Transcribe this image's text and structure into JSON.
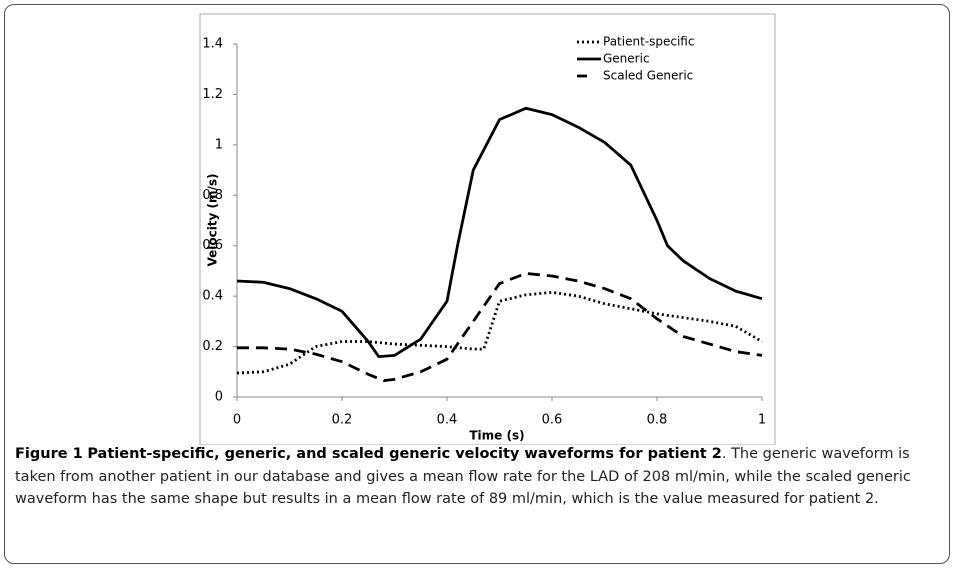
{
  "chart_data": {
    "type": "line",
    "xlabel": "Time (s)",
    "ylabel": "Velocity (m/s)",
    "xlim": [
      0,
      1
    ],
    "xticks": [
      0,
      0.2,
      0.4,
      0.6,
      0.8,
      1
    ],
    "ylim": [
      0,
      1.4
    ],
    "yticks": [
      0,
      0.2,
      0.4,
      0.6,
      0.8,
      1,
      1.2,
      1.4
    ],
    "legend": "upper-right",
    "series": [
      {
        "name": "Patient-specific",
        "color": "#000000",
        "style": "dotted",
        "x": [
          0,
          0.05,
          0.1,
          0.15,
          0.2,
          0.25,
          0.3,
          0.35,
          0.4,
          0.45,
          0.47,
          0.5,
          0.55,
          0.6,
          0.65,
          0.7,
          0.75,
          0.8,
          0.85,
          0.9,
          0.95,
          1
        ],
        "values": [
          0.095,
          0.1,
          0.13,
          0.2,
          0.22,
          0.22,
          0.21,
          0.205,
          0.2,
          0.19,
          0.19,
          0.38,
          0.405,
          0.415,
          0.4,
          0.37,
          0.35,
          0.33,
          0.315,
          0.3,
          0.28,
          0.22
        ]
      },
      {
        "name": "Generic",
        "color": "#000000",
        "style": "solid",
        "x": [
          0,
          0.05,
          0.1,
          0.15,
          0.2,
          0.25,
          0.27,
          0.3,
          0.35,
          0.4,
          0.42,
          0.45,
          0.5,
          0.55,
          0.6,
          0.65,
          0.7,
          0.75,
          0.8,
          0.82,
          0.85,
          0.9,
          0.95,
          1
        ],
        "values": [
          0.46,
          0.455,
          0.43,
          0.39,
          0.34,
          0.22,
          0.16,
          0.165,
          0.23,
          0.38,
          0.6,
          0.9,
          1.1,
          1.145,
          1.12,
          1.07,
          1.01,
          0.92,
          0.7,
          0.6,
          0.54,
          0.47,
          0.42,
          0.39
        ]
      },
      {
        "name": "Scaled Generic",
        "color": "#000000",
        "style": "dashed",
        "x": [
          0,
          0.05,
          0.1,
          0.15,
          0.2,
          0.25,
          0.28,
          0.3,
          0.35,
          0.4,
          0.45,
          0.5,
          0.55,
          0.6,
          0.65,
          0.7,
          0.75,
          0.8,
          0.85,
          0.9,
          0.95,
          1
        ],
        "values": [
          0.195,
          0.195,
          0.19,
          0.17,
          0.14,
          0.09,
          0.065,
          0.07,
          0.1,
          0.15,
          0.3,
          0.45,
          0.49,
          0.48,
          0.46,
          0.43,
          0.39,
          0.31,
          0.24,
          0.21,
          0.18,
          0.165
        ]
      }
    ]
  },
  "caption": {
    "label": "Figure 1",
    "title": "Patient-specific, generic, and scaled generic velocity waveforms for patient 2",
    "text": ". The generic waveform is taken from another patient in our database and gives a mean flow rate for the LAD of 208 ml/min, while the scaled generic waveform has the same shape but results in a mean flow rate of 89 ml/min, which is the value measured for patient 2."
  }
}
